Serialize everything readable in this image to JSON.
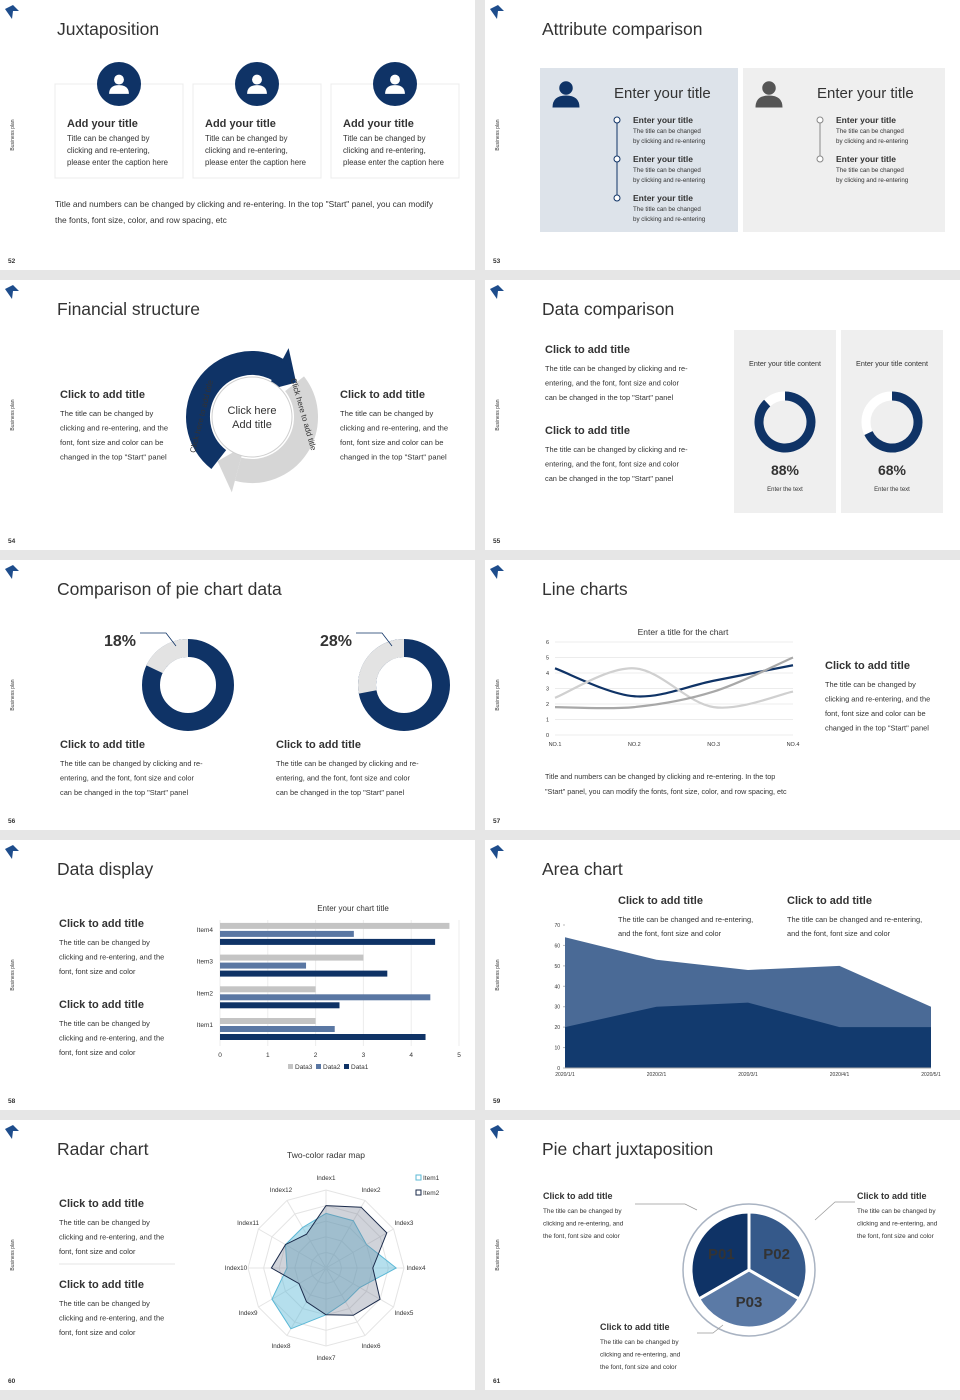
{
  "side_label": "Business plan",
  "slides": [
    {
      "number": "52",
      "title": "Juxtaposition",
      "cards": [
        {
          "title": "Add your title",
          "body": [
            "Title can be changed by",
            "clicking and re-entering,",
            "please enter the caption here"
          ]
        },
        {
          "title": "Add your title",
          "body": [
            "Title can be changed by",
            "clicking and re-entering,",
            "please enter the caption here"
          ]
        },
        {
          "title": "Add your title",
          "body": [
            "Title can be changed by",
            "clicking and re-entering,",
            "please enter the caption here"
          ]
        }
      ],
      "footer": [
        "Title and numbers can be changed by clicking and re-entering. In the top \"Start\" panel, you can modify",
        "the fonts, font size, color, and row spacing, etc"
      ]
    },
    {
      "number": "53",
      "title": "Attribute comparison",
      "panels": [
        {
          "title": "Enter your title",
          "items": [
            {
              "title": "Enter your title",
              "body": [
                "The title can be changed",
                "by clicking and re-entering"
              ]
            },
            {
              "title": "Enter your title",
              "body": [
                "The title can be changed",
                "by clicking and re-entering"
              ]
            },
            {
              "title": "Enter your title",
              "body": [
                "The title can be changed",
                "by clicking and re-entering"
              ]
            }
          ]
        },
        {
          "title": "Enter your title",
          "items": [
            {
              "title": "Enter your title",
              "body": [
                "The title can be changed",
                "by clicking and re-entering"
              ]
            },
            {
              "title": "Enter your title",
              "body": [
                "The title can be changed",
                "by clicking and re-entering"
              ]
            }
          ]
        }
      ]
    },
    {
      "number": "54",
      "title": "Financial structure",
      "blocks": [
        {
          "title": "Click to add title",
          "body": [
            "The title can be changed by",
            "clicking and re-entering, and the",
            "font, font size and color can be",
            "changed in the top \"Start\" panel"
          ]
        },
        {
          "title": "Click to add title",
          "body": [
            "The title can be changed by",
            "clicking and re-entering, and the",
            "font, font size and color can be",
            "changed in the top \"Start\" panel"
          ]
        }
      ],
      "center": [
        "Click here",
        "Add title"
      ],
      "arc_texts": [
        "Click here to add title",
        "Click here to add title"
      ]
    },
    {
      "number": "55",
      "title": "Data comparison",
      "blocks": [
        {
          "title": "Click to add title",
          "body": [
            "The title can be changed by clicking and re-",
            "entering, and the font, font size and color",
            "can be changed in the top \"Start\" panel"
          ]
        },
        {
          "title": "Click to add title",
          "body": [
            "The title can be changed by clicking and re-",
            "entering, and the font, font size and color",
            "can be changed in the top \"Start\" panel"
          ]
        }
      ],
      "donuts": [
        {
          "label": "Enter your title content",
          "value": 88,
          "value_label": "88%",
          "caption": "Enter the text"
        },
        {
          "label": "Enter your title content",
          "value": 68,
          "value_label": "68%",
          "caption": "Enter the text"
        }
      ]
    },
    {
      "number": "56",
      "title": "Comparison of pie chart data",
      "donuts": [
        {
          "value": 18,
          "value_label": "18%"
        },
        {
          "value": 28,
          "value_label": "28%"
        }
      ],
      "blocks": [
        {
          "title": "Click to add title",
          "body": [
            "The title can be changed by clicking and re-",
            "entering, and the font, font size and color",
            "can be changed in the top \"Start\" panel"
          ]
        },
        {
          "title": "Click to add title",
          "body": [
            "The title can be changed by clicking and re-",
            "entering, and the font, font size and color",
            "can be changed in the top \"Start\" panel"
          ]
        }
      ]
    },
    {
      "number": "57",
      "title": "Line charts",
      "chart": {
        "type": "line",
        "title": "Enter a title for the chart",
        "categories": [
          "NO.1",
          "NO.2",
          "NO.3",
          "NO.4"
        ],
        "ylim": [
          0,
          6
        ],
        "yticks": [
          0,
          1,
          2,
          3,
          4,
          5,
          6
        ],
        "series": [
          {
            "color": "#0f3366",
            "values": [
              4.3,
              2.5,
              3.5,
              4.5
            ]
          },
          {
            "color": "#d0d0d0",
            "values": [
              2.4,
              4.3,
              1.8,
              2.8
            ]
          },
          {
            "color": "#a8a8a8",
            "values": [
              1.8,
              1.8,
              2.8,
              5
            ]
          }
        ]
      },
      "block": {
        "title": "Click to add title",
        "body": [
          "The title can be changed by",
          "clicking and re-entering, and the",
          "font, font size and color can be",
          "changed in the top \"Start\" panel"
        ]
      },
      "footer": [
        "Title and numbers can be changed by clicking and re-entering. In the top",
        "\"Start\" panel, you can modify the fonts, font size, color, and row spacing, etc"
      ]
    },
    {
      "number": "58",
      "title": "Data display",
      "blocks": [
        {
          "title": "Click to add title",
          "body": [
            "The title can be changed by",
            "clicking and re-entering, and the",
            "font, font size and color"
          ]
        },
        {
          "title": "Click to add title",
          "body": [
            "The title can be changed by",
            "clicking and re-entering, and the",
            "font, font size and color"
          ]
        }
      ],
      "chart": {
        "type": "hbar",
        "title": "Enter your chart title",
        "categories": [
          "Item1",
          "Item2",
          "Item3",
          "Item4"
        ],
        "xlim": [
          0,
          5
        ],
        "xticks": [
          0,
          1,
          2,
          3,
          4,
          5
        ],
        "series": [
          {
            "name": "Data3",
            "color": "#c4c4c4",
            "values": [
              2,
              2,
              3,
              4.8
            ]
          },
          {
            "name": "Data2",
            "color": "#5a77a3",
            "values": [
              2.4,
              4.4,
              1.8,
              2.8
            ]
          },
          {
            "name": "Data1",
            "color": "#0f3366",
            "values": [
              4.3,
              2.5,
              3.5,
              4.5
            ]
          }
        ]
      }
    },
    {
      "number": "59",
      "title": "Area chart",
      "blocks": [
        {
          "title": "Click to add title",
          "body": [
            "The title can be changed and re-entering,",
            "and the font, font size and color"
          ]
        },
        {
          "title": "Click to add title",
          "body": [
            "The title can be changed and re-entering,",
            "and the font, font size and color"
          ]
        }
      ],
      "chart": {
        "type": "area",
        "categories": [
          "2020/1/1",
          "2020/2/1",
          "2020/3/1",
          "2020/4/1",
          "2020/5/1"
        ],
        "ylim": [
          0,
          70
        ],
        "yticks": [
          0,
          10,
          20,
          30,
          40,
          50,
          60,
          70
        ],
        "series": [
          {
            "color": "#4a6a96",
            "values": [
              64,
              53,
              48,
              50,
              30
            ]
          },
          {
            "color": "#123a6e",
            "values": [
              20,
              30,
              32,
              20,
              20
            ]
          }
        ]
      }
    },
    {
      "number": "60",
      "title": "Radar chart",
      "blocks": [
        {
          "title": "Click to add title",
          "body": [
            "The title can be changed by",
            "clicking and re-entering, and the",
            "font, font size and color"
          ]
        },
        {
          "title": "Click to add title",
          "body": [
            "The title can be changed by",
            "clicking and re-entering, and the",
            "font, font size and color"
          ]
        }
      ],
      "chart": {
        "type": "radar",
        "title": "Two-color radar map",
        "categories": [
          "Index1",
          "Index2",
          "Index3",
          "Index4",
          "Index5",
          "Index6",
          "Index7",
          "Index8",
          "Index9",
          "Index10",
          "Index11",
          "Index12"
        ],
        "rlim": [
          0,
          10
        ],
        "series": [
          {
            "name": "Item1",
            "color": "#5bb8d6",
            "values": [
              7,
              7,
              6,
              9,
              5,
              5,
              6,
              9,
              8,
              5,
              6,
              6
            ]
          },
          {
            "name": "Item2",
            "color": "#1a2a4a",
            "values": [
              8,
              9,
              9,
              6,
              8,
              7,
              6,
              5,
              4,
              7,
              6,
              5
            ]
          }
        ]
      }
    },
    {
      "number": "61",
      "title": "Pie chart juxtaposition",
      "segments": [
        "P01",
        "P02",
        "P03"
      ],
      "blocks": [
        {
          "title": "Click to add title",
          "body": [
            "The title can be changed by",
            "clicking and re-entering, and",
            "the font, font size and color"
          ]
        },
        {
          "title": "Click to add title",
          "body": [
            "The title can be changed by",
            "clicking and re-entering, and",
            "the font, font size and color"
          ]
        },
        {
          "title": "Click to add title",
          "body": [
            "The title can be changed by",
            "clicking and re-entering, and",
            "the font, font size and color"
          ]
        }
      ]
    }
  ]
}
